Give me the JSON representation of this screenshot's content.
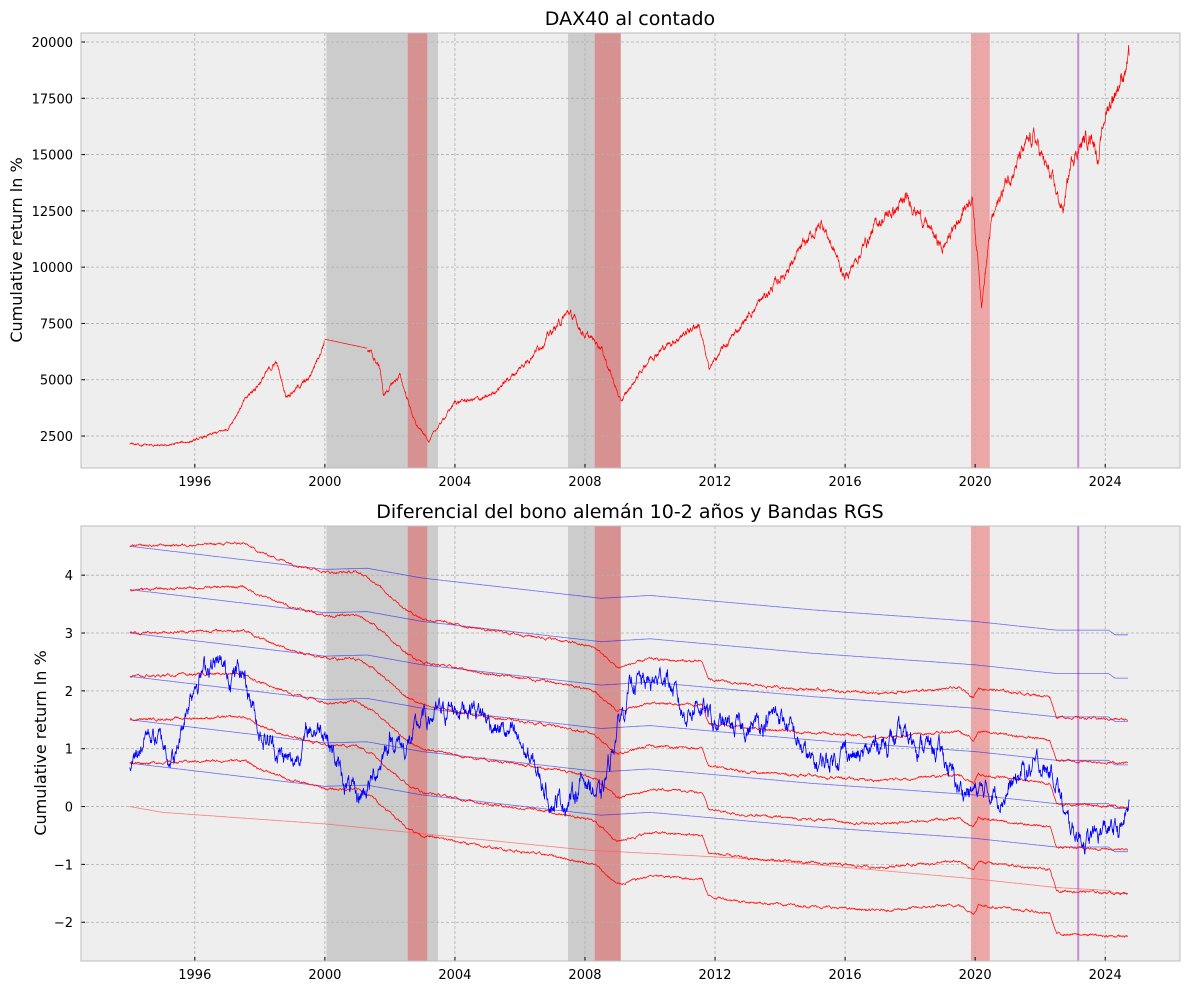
{
  "chart_data": [
    {
      "type": "line",
      "title": "DAX40 al contado",
      "xlabel": "",
      "ylabel": "Cumulative return ln %",
      "xlim": [
        1992.5,
        2026.3
      ],
      "ylim": [
        1080,
        20400
      ],
      "grid": true,
      "x_ticks": [
        1996,
        2000,
        2004,
        2008,
        2012,
        2016,
        2020,
        2024
      ],
      "x_tick_labels": [
        "1996",
        "2000",
        "2004",
        "2008",
        "2012",
        "2016",
        "2020",
        "2024"
      ],
      "y_ticks": [
        2500,
        5000,
        7500,
        10000,
        12500,
        15000,
        17500,
        20000
      ],
      "y_tick_labels": [
        "2500",
        "5000",
        "7500",
        "10000",
        "12500",
        "15000",
        "17500",
        "20000"
      ],
      "shaded_gray": [
        [
          2000.05,
          2003.48
        ],
        [
          2007.48,
          2009.1
        ]
      ],
      "shaded_red": [
        [
          2002.55,
          2003.15
        ],
        [
          2008.3,
          2009.1
        ],
        [
          2019.87,
          2020.45
        ]
      ],
      "vline": 2023.17,
      "series": [
        {
          "name": "DAX40",
          "color": "#ff0000",
          "x": [
            1994,
            1995,
            1996,
            1997,
            1997.5,
            1998.5,
            1998.8,
            1999.5,
            2000.0,
            2001.3,
            2001.7,
            2001.8,
            2002.3,
            2002.8,
            2003.2,
            2004,
            2005,
            2006,
            2007.5,
            2008,
            2008.5,
            2009.1,
            2010,
            2011.5,
            2011.8,
            2013,
            2014,
            2015.3,
            2016,
            2017,
            2018,
            2019,
            2019.9,
            2020.2,
            2020.5,
            2021,
            2021.8,
            2022.3,
            2022.7,
            2023,
            2023.6,
            2023.8,
            2024,
            2024.5,
            2024.75
          ],
          "y": [
            2150,
            2050,
            2300,
            2800,
            4000,
            5800,
            4300,
            5000,
            6800,
            6400,
            5500,
            4300,
            5200,
            3000,
            2300,
            4000,
            4200,
            5500,
            8000,
            7000,
            6500,
            4000,
            6000,
            7500,
            5500,
            7800,
            9500,
            12000,
            9500,
            12000,
            13000,
            10800,
            13300,
            8500,
            12000,
            14000,
            15800,
            14000,
            12500,
            15000,
            16000,
            14800,
            16800,
            18500,
            19300
          ]
        }
      ]
    },
    {
      "type": "line",
      "title": "Diferencial del bono alemán 10-2 años y Bandas RGS",
      "xlabel": "",
      "ylabel": "Cumulative return ln %",
      "xlim": [
        1992.5,
        2026.3
      ],
      "ylim": [
        -2.67,
        4.85
      ],
      "grid": true,
      "x_ticks": [
        1996,
        2000,
        2004,
        2008,
        2012,
        2016,
        2020,
        2024
      ],
      "x_tick_labels": [
        "1996",
        "2000",
        "2004",
        "2008",
        "2012",
        "2016",
        "2020",
        "2024"
      ],
      "y_ticks": [
        -2,
        -1,
        0,
        1,
        2,
        3,
        4
      ],
      "y_tick_labels": [
        "−2",
        "−1",
        "0",
        "1",
        "2",
        "3",
        "4"
      ],
      "shaded_gray": [
        [
          2000.05,
          2003.48
        ],
        [
          2007.48,
          2009.1
        ]
      ],
      "shaded_red": [
        [
          2002.55,
          2003.15
        ],
        [
          2008.3,
          2009.1
        ],
        [
          2019.87,
          2020.45
        ]
      ],
      "vline": 2023.17,
      "spread": {
        "name": "Spread 10-2",
        "color": "#0000ff",
        "x": [
          1994,
          1994.5,
          1995,
          1995.4,
          1995.7,
          1996,
          1996.5,
          1997,
          1997.5,
          1998,
          1998.5,
          1999,
          1999.5,
          2000,
          2000.5,
          2001,
          2001.5,
          2002,
          2002.5,
          2003,
          2004,
          2004.5,
          2005,
          2006,
          2006.5,
          2007,
          2007.5,
          2008,
          2008.5,
          2009,
          2009.5,
          2010,
          2010.5,
          2011,
          2011.5,
          2012,
          2013,
          2014,
          2015,
          2015.5,
          2016,
          2016.5,
          2017,
          2018,
          2019,
          2019.5,
          2020,
          2021,
          2021.5,
          2022,
          2022.5,
          2022.8,
          2023.5,
          2024,
          2024.5,
          2024.75
        ],
        "y": [
          0.6,
          1.3,
          1.1,
          0.8,
          1.6,
          2.2,
          2.5,
          2.3,
          2.35,
          1.3,
          1.0,
          0.7,
          1.3,
          1.4,
          0.5,
          0.1,
          0.5,
          1.2,
          1.0,
          1.5,
          1.7,
          1.8,
          1.5,
          1.1,
          0.6,
          0.1,
          0.1,
          0.5,
          0.1,
          1.4,
          2.2,
          2.1,
          2.3,
          1.6,
          1.8,
          1.4,
          1.35,
          1.6,
          0.7,
          0.8,
          1.0,
          0.8,
          1.1,
          1.2,
          0.9,
          0.3,
          0.25,
          0.25,
          0.6,
          0.7,
          0.5,
          -0.3,
          -0.6,
          -0.4,
          -0.4,
          0.05
        ]
      },
      "red_bands": {
        "color": "#ff0000",
        "starts": [
          4.5,
          3.75,
          3.0,
          2.25,
          1.5,
          0.75
        ],
        "offset_x": [
          1994,
          1997.5,
          1998,
          1999,
          2000.1,
          2001,
          2001.5,
          2002.5,
          2003,
          2004,
          2005,
          2007,
          2008.3,
          2009,
          2010,
          2011.6,
          2011.8,
          2013,
          2017,
          2019.5,
          2019.95,
          2020.1,
          2022.3,
          2022.5,
          2024.7
        ],
        "offset_y": [
          0,
          0.05,
          -0.1,
          -0.3,
          -0.45,
          -0.45,
          -0.6,
          -1.1,
          -1.25,
          -1.35,
          -1.45,
          -1.6,
          -1.75,
          -2.1,
          -1.95,
          -2.0,
          -2.3,
          -2.4,
          -2.55,
          -2.45,
          -2.6,
          -2.45,
          -2.6,
          -2.95,
          -3.0
        ]
      },
      "blue_bands": {
        "color": "#0000ff",
        "starts": [
          4.5,
          3.75,
          3.0,
          2.25,
          1.5,
          0.75
        ],
        "offset_x": [
          1994,
          2000,
          2001.3,
          2003,
          2008.5,
          2010,
          2015,
          2020,
          2022.5,
          2024.1,
          2024.3,
          2024.7
        ],
        "offset_y": [
          0,
          -0.4,
          -0.38,
          -0.55,
          -0.9,
          -0.85,
          -1.1,
          -1.3,
          -1.45,
          -1.45,
          -1.53,
          -1.53
        ]
      },
      "lower_band": {
        "color": "#ff6060",
        "x": [
          1994,
          1995,
          2000,
          2008,
          2013,
          2020,
          2022.5,
          2024.1,
          2024.3,
          2024.7
        ],
        "y": [
          0,
          -0.1,
          -0.3,
          -0.75,
          -0.9,
          -1.25,
          -1.4,
          -1.45,
          -1.5,
          -1.5
        ]
      }
    }
  ]
}
